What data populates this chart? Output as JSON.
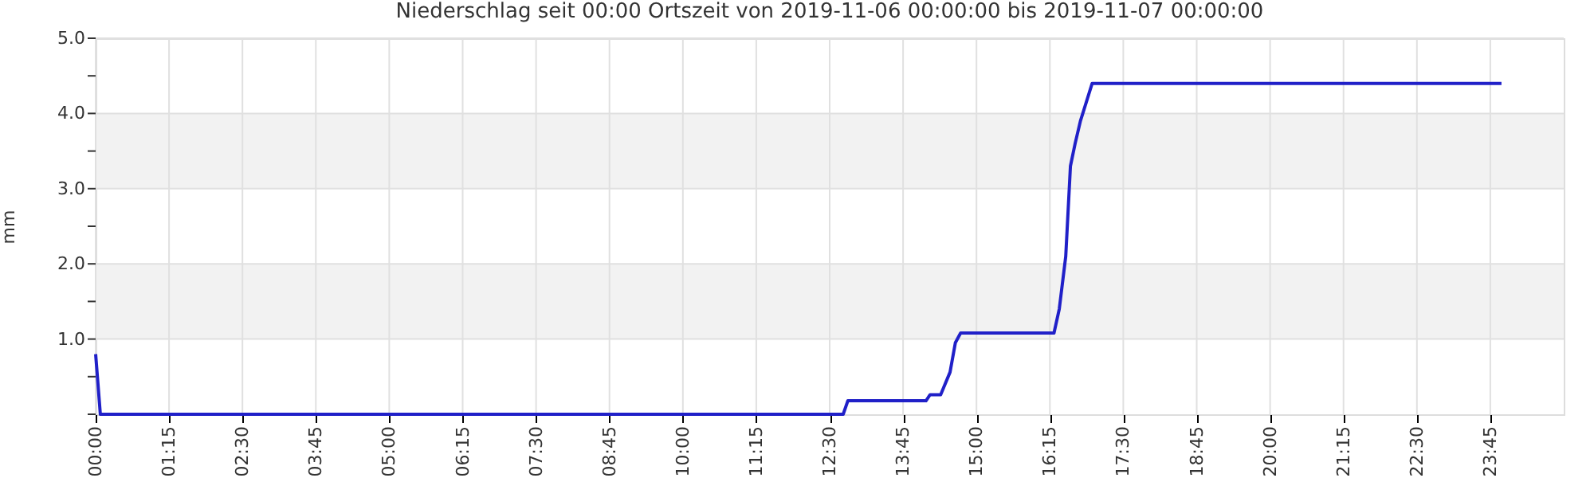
{
  "chart_data": {
    "type": "line",
    "title": "Niederschlag seit 00:00 Ortszeit von 2019-11-06 00:00:00 bis 2019-11-07 00:00:00",
    "ylabel": "mm",
    "x": [
      0,
      0.08,
      12.73,
      12.81,
      14.14,
      14.21,
      14.39,
      14.55,
      14.64,
      14.73,
      16.32,
      16.41,
      16.52,
      16.6,
      16.68,
      16.77,
      16.97,
      23.94
    ],
    "series": [
      {
        "color": "#2020c8",
        "values": [
          0.8,
          0,
          0,
          0.18,
          0.18,
          0.26,
          0.26,
          0.56,
          0.95,
          1.08,
          1.08,
          1.4,
          2.1,
          3.3,
          3.6,
          3.9,
          4.4,
          4.4
        ]
      }
    ],
    "xlim": [
      0,
      25
    ],
    "xticks": [
      {
        "value": 0,
        "label": "00:00"
      },
      {
        "value": 1.25,
        "label": "01:15"
      },
      {
        "value": 2.5,
        "label": "02:30"
      },
      {
        "value": 3.75,
        "label": "03:45"
      },
      {
        "value": 5,
        "label": "05:00"
      },
      {
        "value": 6.25,
        "label": "06:15"
      },
      {
        "value": 7.5,
        "label": "07:30"
      },
      {
        "value": 8.75,
        "label": "08:45"
      },
      {
        "value": 10,
        "label": "10:00"
      },
      {
        "value": 11.25,
        "label": "11:15"
      },
      {
        "value": 12.5,
        "label": "12:30"
      },
      {
        "value": 13.75,
        "label": "13:45"
      },
      {
        "value": 15,
        "label": "15:00"
      },
      {
        "value": 16.25,
        "label": "16:15"
      },
      {
        "value": 17.5,
        "label": "17:30"
      },
      {
        "value": 18.75,
        "label": "18:45"
      },
      {
        "value": 20,
        "label": "20:00"
      },
      {
        "value": 21.25,
        "label": "21:15"
      },
      {
        "value": 22.5,
        "label": "22:30"
      },
      {
        "value": 23.75,
        "label": "23:45"
      }
    ],
    "ylim": [
      0,
      5
    ],
    "yticks": [
      {
        "value": 0,
        "label": null
      },
      {
        "value": 0.5,
        "label": null
      },
      {
        "value": 1,
        "label": "1.0"
      },
      {
        "value": 1.5,
        "label": null
      },
      {
        "value": 2,
        "label": "2.0"
      },
      {
        "value": 2.5,
        "label": null
      },
      {
        "value": 3,
        "label": "3.0"
      },
      {
        "value": 3.5,
        "label": null
      },
      {
        "value": 4,
        "label": "4.0"
      },
      {
        "value": 4.5,
        "label": null
      },
      {
        "value": 5,
        "label": "5.0"
      }
    ],
    "bands": [
      {
        "axis": "y",
        "from": 1,
        "to": 2,
        "color": "#f2f2f2"
      },
      {
        "axis": "y",
        "from": 3,
        "to": 4,
        "color": "#f2f2f2"
      }
    ],
    "grid": true,
    "marker": "none",
    "line_style": "solid"
  }
}
